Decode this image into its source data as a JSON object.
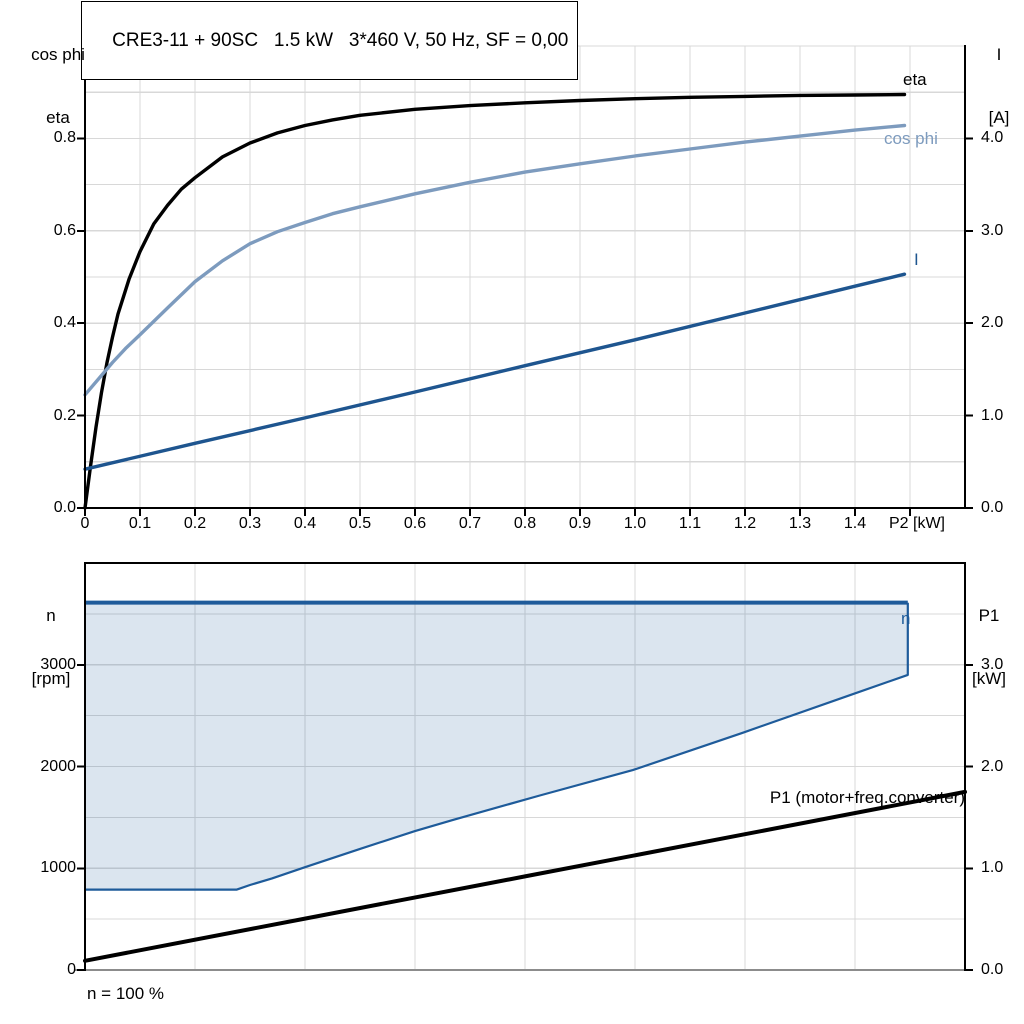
{
  "colors": {
    "axis": "#000000",
    "gridline": "#D8D8D8",
    "baseline_gray": "#8C8C8C",
    "eta_curve": "#000000",
    "cos_phi_curve": "#7D9BBE",
    "current_curve": "#1E558F",
    "speed_region_line": "#1E5B9A",
    "speed_region_fill": "rgba(30,91,154,0.16)",
    "p1_curve": "#000000"
  },
  "chart_data": [
    {
      "type": "line",
      "title": "CRE3-11 + 90SC   1.5 kW   3*460 V, 50 Hz, SF = 0,00",
      "x": {
        "label": "P2 [kW]",
        "min": 0,
        "max": 1.6,
        "grid_step": 0.1,
        "tick_values": [
          0,
          0.1,
          0.2,
          0.3,
          0.4,
          0.5,
          0.6,
          0.7,
          0.8,
          0.9,
          1.0,
          1.1,
          1.2,
          1.3,
          1.4,
          1.5
        ],
        "tick_labels": [
          "0",
          "0.1",
          "0.2",
          "0.3",
          "0.4",
          "0.5",
          "0.6",
          "0.7",
          "0.8",
          "0.9",
          "1.0",
          "1.1",
          "1.2",
          "1.3",
          "1.4",
          ""
        ]
      },
      "y_left": {
        "title_lines": [
          "cos phi",
          "eta"
        ],
        "min": 0,
        "max": 1.0,
        "grid_step": 0.1,
        "tick_values": [
          0,
          0.2,
          0.4,
          0.6,
          0.8
        ],
        "tick_labels": [
          "0.0",
          "0.2",
          "0.4",
          "0.6",
          "0.8"
        ]
      },
      "y_right": {
        "title_lines": [
          "I",
          "[A]"
        ],
        "min": 0,
        "max": 5.0,
        "tick_values": [
          0,
          1,
          2,
          3,
          4
        ],
        "tick_labels": [
          "0.0",
          "1.0",
          "2.0",
          "3.0",
          "4.0"
        ]
      },
      "series": [
        {
          "name": "eta",
          "axis": "left",
          "color": "#000000",
          "width": 3.4,
          "points": [
            [
              0,
              0
            ],
            [
              0.01,
              0.09
            ],
            [
              0.02,
              0.175
            ],
            [
              0.03,
              0.25
            ],
            [
              0.04,
              0.315
            ],
            [
              0.05,
              0.37
            ],
            [
              0.06,
              0.42
            ],
            [
              0.08,
              0.495
            ],
            [
              0.1,
              0.555
            ],
            [
              0.125,
              0.615
            ],
            [
              0.15,
              0.655
            ],
            [
              0.175,
              0.69
            ],
            [
              0.2,
              0.715
            ],
            [
              0.25,
              0.76
            ],
            [
              0.3,
              0.79
            ],
            [
              0.35,
              0.812
            ],
            [
              0.4,
              0.828
            ],
            [
              0.45,
              0.84
            ],
            [
              0.5,
              0.85
            ],
            [
              0.6,
              0.863
            ],
            [
              0.7,
              0.871
            ],
            [
              0.8,
              0.877
            ],
            [
              0.9,
              0.882
            ],
            [
              1.0,
              0.886
            ],
            [
              1.1,
              0.889
            ],
            [
              1.2,
              0.891
            ],
            [
              1.3,
              0.893
            ],
            [
              1.4,
              0.894
            ],
            [
              1.49,
              0.895
            ]
          ]
        },
        {
          "name": "cos phi",
          "axis": "left",
          "color": "#7D9BBE",
          "width": 3.4,
          "points": [
            [
              0,
              0.245
            ],
            [
              0.025,
              0.28
            ],
            [
              0.05,
              0.315
            ],
            [
              0.075,
              0.347
            ],
            [
              0.1,
              0.375
            ],
            [
              0.15,
              0.433
            ],
            [
              0.2,
              0.49
            ],
            [
              0.25,
              0.535
            ],
            [
              0.3,
              0.572
            ],
            [
              0.35,
              0.598
            ],
            [
              0.4,
              0.618
            ],
            [
              0.45,
              0.637
            ],
            [
              0.5,
              0.652
            ],
            [
              0.6,
              0.68
            ],
            [
              0.7,
              0.705
            ],
            [
              0.8,
              0.727
            ],
            [
              0.9,
              0.745
            ],
            [
              1.0,
              0.762
            ],
            [
              1.1,
              0.777
            ],
            [
              1.2,
              0.792
            ],
            [
              1.3,
              0.805
            ],
            [
              1.4,
              0.818
            ],
            [
              1.49,
              0.828
            ]
          ]
        },
        {
          "name": "I",
          "axis": "right",
          "color": "#1E558F",
          "width": 3.4,
          "points": [
            [
              0,
              0.42
            ],
            [
              0.2,
              0.7
            ],
            [
              0.4,
              0.975
            ],
            [
              0.6,
              1.255
            ],
            [
              0.8,
              1.54
            ],
            [
              1.0,
              1.82
            ],
            [
              1.2,
              2.11
            ],
            [
              1.4,
              2.4
            ],
            [
              1.49,
              2.53
            ]
          ]
        }
      ]
    },
    {
      "type": "line",
      "x": {
        "label": "",
        "min": 0,
        "max": 1.6,
        "grid_step": 0.2,
        "tick_values": [],
        "tick_labels": []
      },
      "y_left": {
        "title_lines": [
          "n",
          "[rpm]"
        ],
        "min": 0,
        "max": 4000,
        "grid_step": 500,
        "tick_values": [
          0,
          1000,
          2000,
          3000
        ],
        "tick_labels": [
          "0",
          "1000",
          "2000",
          "3000"
        ]
      },
      "y_right": {
        "title_lines": [
          "P1",
          "[kW]"
        ],
        "min": 0,
        "max": 4.0,
        "tick_values": [
          0,
          1,
          2,
          3
        ],
        "tick_labels": [
          "0.0",
          "1.0",
          "2.0",
          "3.0"
        ]
      },
      "region": {
        "label": "n",
        "axis": "left",
        "fill": "rgba(30,91,154,0.16)",
        "line_color": "#1E5B9A",
        "top_line_width": 4,
        "boundary_line_width": 2.2,
        "points": [
          [
            0,
            3610
          ],
          [
            1.496,
            3610
          ],
          [
            1.496,
            2900
          ],
          [
            1.39,
            2700
          ],
          [
            1.195,
            2330
          ],
          [
            0.996,
            1965
          ],
          [
            0.827,
            1715
          ],
          [
            0.669,
            1475
          ],
          [
            0.6,
            1365
          ],
          [
            0.5,
            1190
          ],
          [
            0.4,
            1010
          ],
          [
            0.34,
            900
          ],
          [
            0.3,
            835
          ],
          [
            0.276,
            790
          ],
          [
            0,
            790
          ]
        ]
      },
      "series": [
        {
          "name": "P1 (motor+freq.converter)",
          "axis": "right",
          "color": "#000000",
          "width": 4,
          "points": [
            [
              0,
              0.09
            ],
            [
              0.4,
              0.505
            ],
            [
              0.8,
              0.92
            ],
            [
              1.2,
              1.335
            ],
            [
              1.6,
              1.75
            ]
          ]
        }
      ],
      "footnote": "n = 100 %"
    }
  ]
}
